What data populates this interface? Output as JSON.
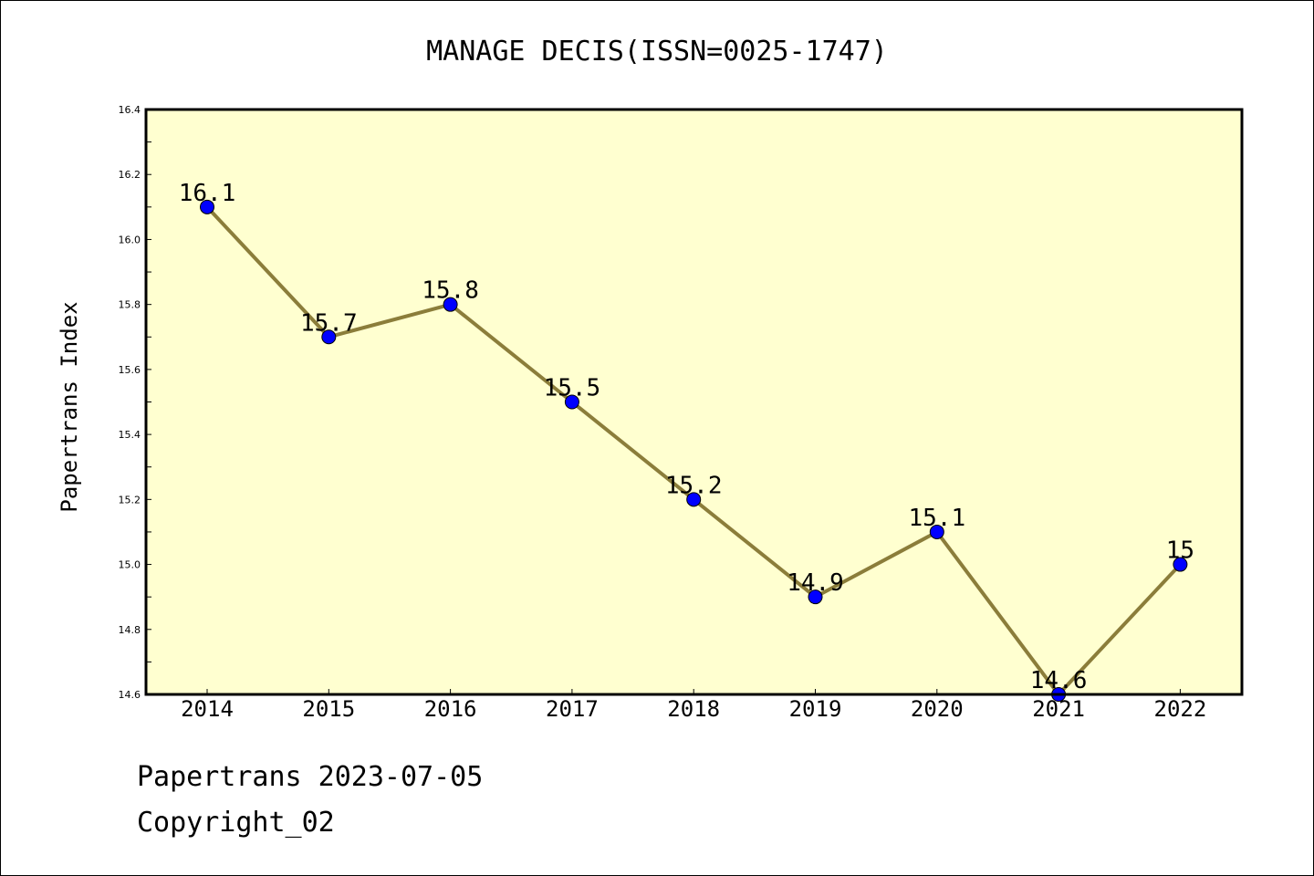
{
  "chart_data": {
    "type": "line",
    "title": "MANAGE DECIS(ISSN=0025-1747)",
    "xlabel": "",
    "ylabel": "Papertrans Index",
    "x": [
      "2014",
      "2015",
      "2016",
      "2017",
      "2018",
      "2019",
      "2020",
      "2021",
      "2022"
    ],
    "series": [
      {
        "values": [
          16.1,
          15.7,
          15.8,
          15.5,
          15.2,
          14.9,
          15.1,
          14.6,
          15.0
        ],
        "data_labels": [
          "16.1",
          "15.7",
          "15.8",
          "15.5",
          "15.2",
          "14.9",
          "15.1",
          "14.6",
          "15"
        ]
      }
    ],
    "ylim": [
      14.6,
      16.4
    ],
    "yticks": [
      "14.6",
      "14.8",
      "15.0",
      "15.2",
      "15.4",
      "15.6",
      "15.8",
      "16.0",
      "16.2",
      "16.4"
    ],
    "grid": false,
    "legend": "none",
    "colors": {
      "plot_background": "#ffffd0",
      "line": "#8b7d3a",
      "marker": "#0000ff"
    }
  },
  "footer": {
    "line1": "Papertrans 2023-07-05",
    "line2": "Copyright_02"
  }
}
